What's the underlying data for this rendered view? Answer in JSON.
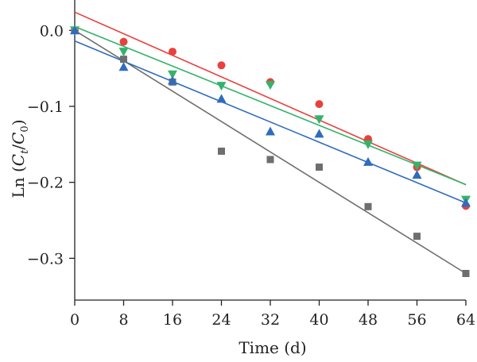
{
  "chart_data": {
    "type": "scatter",
    "xlabel": "Time (d)",
    "ylabel_parts": {
      "prefix": "Ln (",
      "c1": "C",
      "s1": "t",
      "slash": "/",
      "c2": "C",
      "s2": "0",
      "suffix": ")"
    },
    "xlim": [
      0,
      64
    ],
    "ylim": [
      -0.355,
      0.04
    ],
    "x_ticks": [
      0,
      8,
      16,
      24,
      32,
      40,
      48,
      56,
      64
    ],
    "x_tick_labels": [
      "0",
      "8",
      "16",
      "24",
      "32",
      "40",
      "48",
      "56",
      "64"
    ],
    "y_ticks": [
      0.0,
      -0.1,
      -0.2,
      -0.3
    ],
    "y_tick_labels": [
      "0.0",
      "−0.1",
      "−0.2",
      "−0.3"
    ],
    "grid": false,
    "legend": "none",
    "series": [
      {
        "marker": "square",
        "color": "#6e6e6e",
        "x": [
          0,
          8,
          16,
          24,
          32,
          40,
          48,
          56,
          64
        ],
        "y": [
          0.0,
          -0.038,
          -0.068,
          -0.159,
          -0.17,
          -0.18,
          -0.232,
          -0.271,
          -0.32
        ],
        "fit": {
          "intercept": 0.0,
          "slope": -0.005
        }
      },
      {
        "marker": "circle",
        "color": "#e8413c",
        "x": [
          0,
          8,
          16,
          24,
          32,
          40,
          48,
          56,
          64
        ],
        "y": [
          0.0,
          -0.015,
          -0.028,
          -0.046,
          -0.068,
          -0.097,
          -0.143,
          -0.18,
          -0.231
        ],
        "fit": {
          "intercept": 0.024,
          "slope": -0.00355
        }
      },
      {
        "marker": "triangle-down",
        "color": "#33b36b",
        "x": [
          0,
          8,
          16,
          24,
          32,
          40,
          48,
          56,
          64
        ],
        "y": [
          0.0,
          -0.028,
          -0.058,
          -0.073,
          -0.072,
          -0.117,
          -0.15,
          -0.178,
          -0.223
        ],
        "fit": {
          "intercept": 0.005,
          "slope": -0.00325
        }
      },
      {
        "marker": "triangle-up",
        "color": "#2f6cbf",
        "x": [
          0,
          8,
          16,
          24,
          32,
          40,
          48,
          56,
          64
        ],
        "y": [
          0.0,
          -0.048,
          -0.066,
          -0.09,
          -0.133,
          -0.136,
          -0.173,
          -0.19,
          -0.227
        ],
        "fit": {
          "intercept": -0.014,
          "slope": -0.00333
        }
      }
    ]
  }
}
